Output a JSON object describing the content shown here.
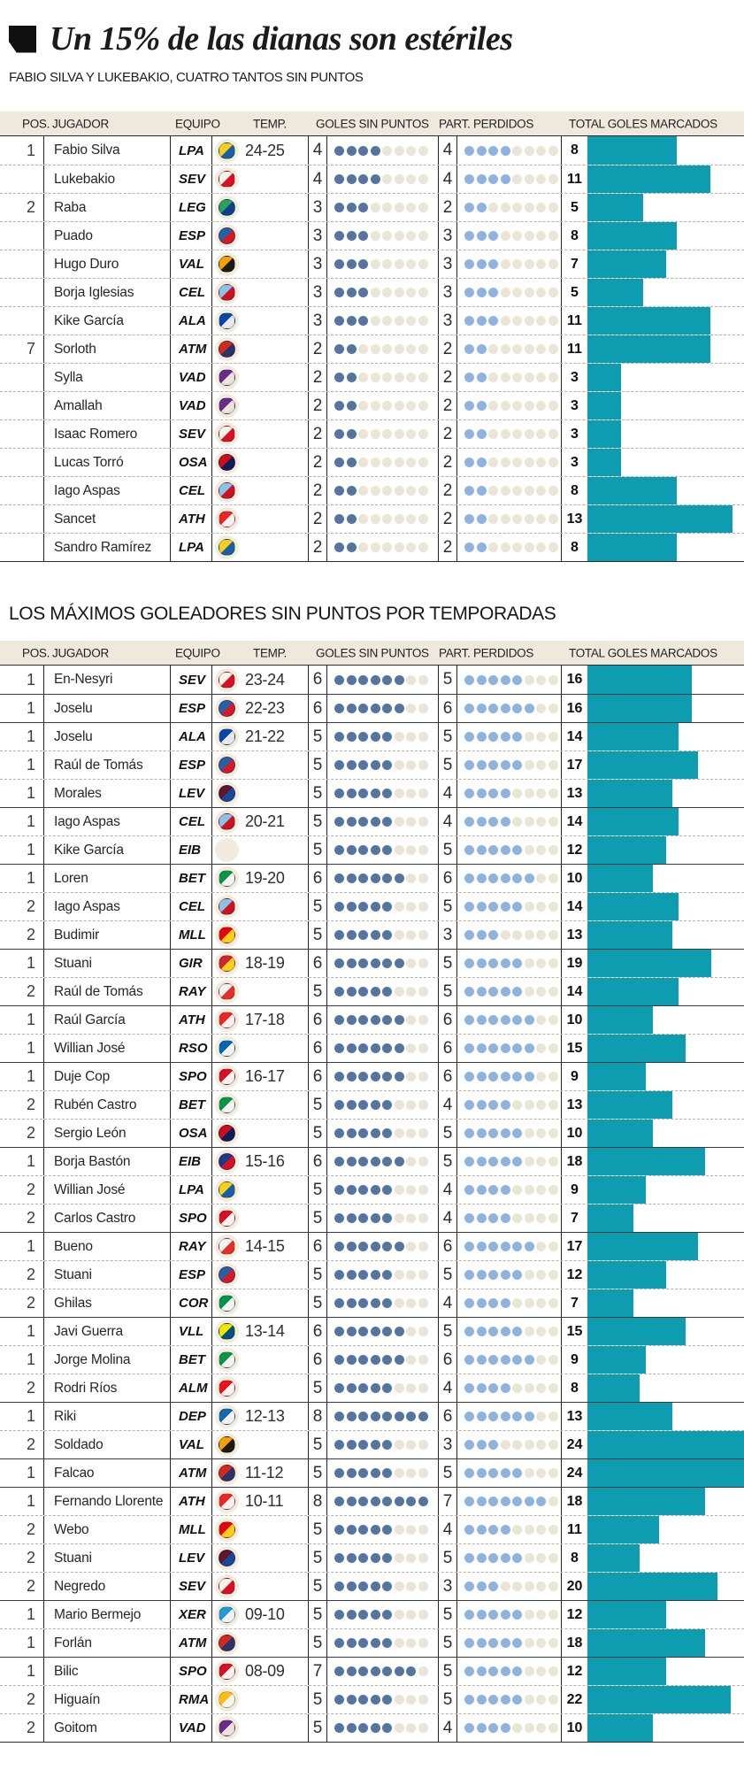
{
  "header": {
    "title": "Un 15% de las dianas son estériles",
    "subtitle": "FABIO SILVA Y LUKEBAKIO, CUATRO TANTOS SIN PUNTOS",
    "section2_title": "LOS MÁXIMOS GOLEADORES SIN PUNTOS POR TEMPORADAS"
  },
  "columns": [
    "POS.",
    "JUGADOR",
    "EQUIPO",
    "TEMP.",
    "GOLES SIN PUNTOS",
    "PART. PERDIDOS",
    "TOTAL GOLES MARCADOS"
  ],
  "colors": {
    "accent_bar": "#0e9cb1",
    "goals_dot": "#55749f",
    "missed_dot": "#8fb3e0",
    "empty_dot": "#ebe5d6",
    "header_bg": "#eee9dc"
  },
  "dots_per_row": 8,
  "team_colors": {
    "LPA": [
      "#f7d117",
      "#1a5dab"
    ],
    "SEV": [
      "#f7f2ec",
      "#d8101f"
    ],
    "LEG": [
      "#2aa25c",
      "#123e8f"
    ],
    "ESP": [
      "#1f62ad",
      "#d61a22"
    ],
    "VAL": [
      "#f4a00a",
      "#1b1b1b"
    ],
    "CEL": [
      "#8ac3ea",
      "#cf1020"
    ],
    "ALA": [
      "#0847a8",
      "#e8e8e8"
    ],
    "ATM": [
      "#d4281c",
      "#27356e"
    ],
    "VAD": [
      "#6a2d87",
      "#e8e4da"
    ],
    "OSA": [
      "#d00c18",
      "#0a1f5c"
    ],
    "ATH": [
      "#ee2523",
      "#f2f2f2"
    ],
    "EIB": [
      "#143c8b",
      "#d8101f"
    ],
    "BET": [
      "#0b9444",
      "#f2f2f2"
    ],
    "MLL": [
      "#e20613",
      "#f7d117"
    ],
    "GIR": [
      "#cd2534",
      "#f7d117"
    ],
    "RAY": [
      "#f2f2f2",
      "#e53027"
    ],
    "RSO": [
      "#0067b1",
      "#f2f2f2"
    ],
    "SPO": [
      "#d8101f",
      "#f2f2f2"
    ],
    "COR": [
      "#00954c",
      "#f2f2f2"
    ],
    "VLL": [
      "#f2e500",
      "#005187"
    ],
    "ALM": [
      "#ee1119",
      "#f2f2f2"
    ],
    "DEP": [
      "#1467b1",
      "#f2f2f2"
    ],
    "XER": [
      "#1f9ad7",
      "#f2f2f2"
    ],
    "RMA": [
      "#febe10",
      "#f5f5f5"
    ],
    "LEV": [
      "#651328",
      "#144a9c"
    ]
  },
  "chart_data": [
    {
      "type": "table",
      "title": "Goles sin puntos temporada 24-25",
      "bar_full_value": 14,
      "rows": [
        {
          "pos": "1",
          "player": "Fabio Silva",
          "team": "LPA",
          "temp": "24-25",
          "goals": 4,
          "missed": 4,
          "total": 8,
          "group_start": true
        },
        {
          "pos": "",
          "player": "Lukebakio",
          "team": "SEV",
          "temp": "",
          "goals": 4,
          "missed": 4,
          "total": 11
        },
        {
          "pos": "2",
          "player": "Raba",
          "team": "LEG",
          "temp": "",
          "goals": 3,
          "missed": 2,
          "total": 5
        },
        {
          "pos": "",
          "player": "Puado",
          "team": "ESP",
          "temp": "",
          "goals": 3,
          "missed": 3,
          "total": 8
        },
        {
          "pos": "",
          "player": "Hugo Duro",
          "team": "VAL",
          "temp": "",
          "goals": 3,
          "missed": 3,
          "total": 7
        },
        {
          "pos": "",
          "player": "Borja Iglesias",
          "team": "CEL",
          "temp": "",
          "goals": 3,
          "missed": 3,
          "total": 5
        },
        {
          "pos": "",
          "player": "Kike García",
          "team": "ALA",
          "temp": "",
          "goals": 3,
          "missed": 3,
          "total": 11
        },
        {
          "pos": "7",
          "player": "Sorloth",
          "team": "ATM",
          "temp": "",
          "goals": 2,
          "missed": 2,
          "total": 11
        },
        {
          "pos": "",
          "player": "Sylla",
          "team": "VAD",
          "temp": "",
          "goals": 2,
          "missed": 2,
          "total": 3
        },
        {
          "pos": "",
          "player": "Amallah",
          "team": "VAD",
          "temp": "",
          "goals": 2,
          "missed": 2,
          "total": 3
        },
        {
          "pos": "",
          "player": "Isaac Romero",
          "team": "SEV",
          "temp": "",
          "goals": 2,
          "missed": 2,
          "total": 3
        },
        {
          "pos": "",
          "player": "Lucas Torró",
          "team": "OSA",
          "temp": "",
          "goals": 2,
          "missed": 2,
          "total": 3
        },
        {
          "pos": "",
          "player": "Iago Aspas",
          "team": "CEL",
          "temp": "",
          "goals": 2,
          "missed": 2,
          "total": 8
        },
        {
          "pos": "",
          "player": "Sancet",
          "team": "ATH",
          "temp": "",
          "goals": 2,
          "missed": 2,
          "total": 13
        },
        {
          "pos": "",
          "player": "Sandro Ramírez",
          "team": "LPA",
          "temp": "",
          "goals": 2,
          "missed": 2,
          "total": 8
        }
      ]
    },
    {
      "type": "table",
      "title": "Los máximos goleadores sin puntos por temporadas",
      "bar_full_value": 24,
      "rows": [
        {
          "pos": "1",
          "player": "En-Nesyri",
          "team": "SEV",
          "temp": "23-24",
          "goals": 6,
          "missed": 5,
          "total": 16,
          "group_start": true
        },
        {
          "pos": "1",
          "player": "Joselu",
          "team": "ESP",
          "temp": "22-23",
          "goals": 6,
          "missed": 6,
          "total": 16,
          "group_start": true
        },
        {
          "pos": "1",
          "player": "Joselu",
          "team": "ALA",
          "temp": "21-22",
          "goals": 5,
          "missed": 5,
          "total": 14,
          "group_start": true
        },
        {
          "pos": "1",
          "player": "Raúl de Tomás",
          "team": "ESP",
          "temp": "",
          "goals": 5,
          "missed": 5,
          "total": 17
        },
        {
          "pos": "1",
          "player": "Morales",
          "team": "LEV",
          "temp": "",
          "goals": 5,
          "missed": 4,
          "total": 13
        },
        {
          "pos": "1",
          "player": "Iago Aspas",
          "team": "CEL",
          "temp": "20-21",
          "goals": 5,
          "missed": 4,
          "total": 14,
          "group_start": true
        },
        {
          "pos": "1",
          "player": "Kike García",
          "team": "EIB",
          "temp": "",
          "goals": 5,
          "missed": 5,
          "total": 12,
          "no_crest": true
        },
        {
          "pos": "1",
          "player": "Loren",
          "team": "BET",
          "temp": "19-20",
          "goals": 6,
          "missed": 6,
          "total": 10,
          "group_start": true
        },
        {
          "pos": "2",
          "player": "Iago Aspas",
          "team": "CEL",
          "temp": "",
          "goals": 5,
          "missed": 5,
          "total": 14
        },
        {
          "pos": "2",
          "player": "Budimir",
          "team": "MLL",
          "temp": "",
          "goals": 5,
          "missed": 3,
          "total": 13
        },
        {
          "pos": "1",
          "player": "Stuani",
          "team": "GIR",
          "temp": "18-19",
          "goals": 6,
          "missed": 5,
          "total": 19,
          "group_start": true
        },
        {
          "pos": "2",
          "player": "Raúl de Tomás",
          "team": "RAY",
          "temp": "",
          "goals": 5,
          "missed": 5,
          "total": 14
        },
        {
          "pos": "1",
          "player": "Raúl García",
          "team": "ATH",
          "temp": "17-18",
          "goals": 6,
          "missed": 6,
          "total": 10,
          "group_start": true
        },
        {
          "pos": "1",
          "player": "Willian José",
          "team": "RSO",
          "temp": "",
          "goals": 6,
          "missed": 6,
          "total": 15
        },
        {
          "pos": "1",
          "player": "Duje Cop",
          "team": "SPO",
          "temp": "16-17",
          "goals": 6,
          "missed": 6,
          "total": 9,
          "group_start": true
        },
        {
          "pos": "2",
          "player": "Rubén Castro",
          "team": "BET",
          "temp": "",
          "goals": 5,
          "missed": 4,
          "total": 13
        },
        {
          "pos": "2",
          "player": "Sergio León",
          "team": "OSA",
          "temp": "",
          "goals": 5,
          "missed": 5,
          "total": 10
        },
        {
          "pos": "1",
          "player": "Borja Bastón",
          "team": "EIB",
          "temp": "15-16",
          "goals": 6,
          "missed": 5,
          "total": 18,
          "group_start": true
        },
        {
          "pos": "2",
          "player": "Willian José",
          "team": "LPA",
          "temp": "",
          "goals": 5,
          "missed": 4,
          "total": 9
        },
        {
          "pos": "2",
          "player": "Carlos Castro",
          "team": "SPO",
          "temp": "",
          "goals": 5,
          "missed": 4,
          "total": 7
        },
        {
          "pos": "1",
          "player": "Bueno",
          "team": "RAY",
          "temp": "14-15",
          "goals": 6,
          "missed": 6,
          "total": 17,
          "group_start": true
        },
        {
          "pos": "2",
          "player": "Stuani",
          "team": "ESP",
          "temp": "",
          "goals": 5,
          "missed": 5,
          "total": 12
        },
        {
          "pos": "2",
          "player": "Ghilas",
          "team": "COR",
          "temp": "",
          "goals": 5,
          "missed": 4,
          "total": 7
        },
        {
          "pos": "1",
          "player": "Javi Guerra",
          "team": "VLL",
          "temp": "13-14",
          "goals": 6,
          "missed": 5,
          "total": 15,
          "group_start": true
        },
        {
          "pos": "1",
          "player": "Jorge Molina",
          "team": "BET",
          "temp": "",
          "goals": 6,
          "missed": 6,
          "total": 9
        },
        {
          "pos": "2",
          "player": "Rodri Ríos",
          "team": "ALM",
          "temp": "",
          "goals": 5,
          "missed": 4,
          "total": 8
        },
        {
          "pos": "1",
          "player": "Riki",
          "team": "DEP",
          "temp": "12-13",
          "goals": 8,
          "missed": 6,
          "total": 13,
          "group_start": true
        },
        {
          "pos": "2",
          "player": "Soldado",
          "team": "VAL",
          "temp": "",
          "goals": 5,
          "missed": 3,
          "total": 24
        },
        {
          "pos": "1",
          "player": "Falcao",
          "team": "ATM",
          "temp": "11-12",
          "goals": 5,
          "missed": 5,
          "total": 24,
          "group_start": true
        },
        {
          "pos": "1",
          "player": "Fernando Llorente",
          "team": "ATH",
          "temp": "10-11",
          "goals": 8,
          "missed": 7,
          "total": 18,
          "group_start": true
        },
        {
          "pos": "2",
          "player": "Webo",
          "team": "MLL",
          "temp": "",
          "goals": 5,
          "missed": 4,
          "total": 11
        },
        {
          "pos": "2",
          "player": "Stuani",
          "team": "LEV",
          "temp": "",
          "goals": 5,
          "missed": 5,
          "total": 8
        },
        {
          "pos": "2",
          "player": "Negredo",
          "team": "SEV",
          "temp": "",
          "goals": 5,
          "missed": 3,
          "total": 20
        },
        {
          "pos": "1",
          "player": "Mario Bermejo",
          "team": "XER",
          "temp": "09-10",
          "goals": 5,
          "missed": 5,
          "total": 12,
          "group_start": true
        },
        {
          "pos": "1",
          "player": "Forlán",
          "team": "ATM",
          "temp": "",
          "goals": 5,
          "missed": 5,
          "total": 18
        },
        {
          "pos": "1",
          "player": "Bilic",
          "team": "SPO",
          "temp": "08-09",
          "goals": 7,
          "missed": 5,
          "total": 12,
          "group_start": true
        },
        {
          "pos": "2",
          "player": "Higuaín",
          "team": "RMA",
          "temp": "",
          "goals": 5,
          "missed": 5,
          "total": 22
        },
        {
          "pos": "2",
          "player": "Goitom",
          "team": "VAD",
          "temp": "",
          "goals": 5,
          "missed": 4,
          "total": 10
        }
      ]
    }
  ]
}
